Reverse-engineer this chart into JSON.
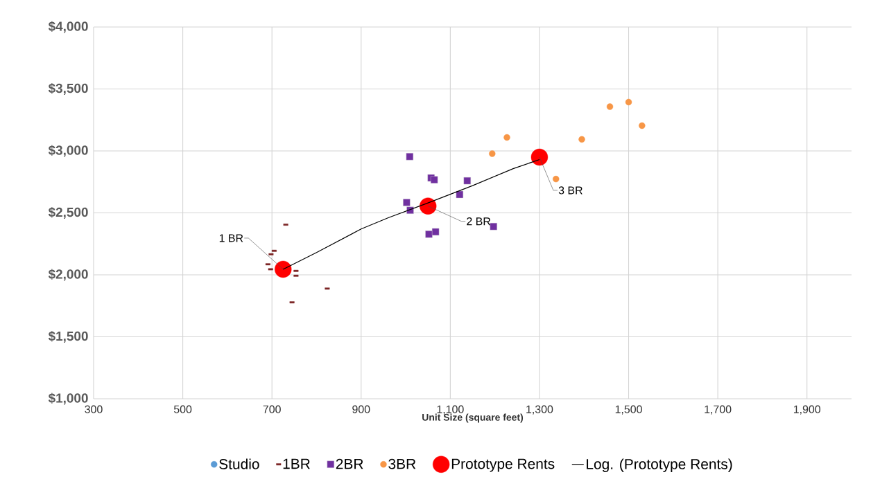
{
  "chart_data": {
    "type": "scatter",
    "xlabel": "Unit Size (square feet)",
    "xlim": [
      300,
      2000
    ],
    "xticks": [
      {
        "value": 300,
        "label": "300"
      },
      {
        "value": 500,
        "label": "500"
      },
      {
        "value": 700,
        "label": "700"
      },
      {
        "value": 900,
        "label": "900"
      },
      {
        "value": 1100,
        "label": "1,100"
      },
      {
        "value": 1300,
        "label": "1,300"
      },
      {
        "value": 1500,
        "label": "1,500"
      },
      {
        "value": 1700,
        "label": "1,700"
      },
      {
        "value": 1900,
        "label": "1,900"
      }
    ],
    "ylim": [
      1000,
      4000
    ],
    "yticks": [
      {
        "value": 1000,
        "label": "$1,000"
      },
      {
        "value": 1500,
        "label": "$1,500"
      },
      {
        "value": 2000,
        "label": "$2,000"
      },
      {
        "value": 2500,
        "label": "$2,500"
      },
      {
        "value": 3000,
        "label": "$3,000"
      },
      {
        "value": 3500,
        "label": "$3,500"
      },
      {
        "value": 4000,
        "label": "$4,000"
      }
    ],
    "grid": true,
    "legend": "bottom",
    "series": [
      {
        "name": "Studio",
        "color": "#5b9bd5",
        "marker": "circle"
      },
      {
        "name": "1BR",
        "color": "#7b2424",
        "x": [
          731,
          705,
          698,
          691,
          697,
          754,
          754,
          824,
          745
        ],
        "values": [
          2405,
          2194,
          2166,
          2085,
          2045,
          2032,
          1993,
          1889,
          1778
        ]
      },
      {
        "name": "2BR",
        "color": "#7030a0",
        "marker": "square",
        "x": [
          1009,
          1057,
          1064,
          1138,
          1121,
          1002,
          1010,
          1197,
          1052,
          1067
        ],
        "values": [
          2954,
          2782,
          2767,
          2759,
          2648,
          2584,
          2521,
          2390,
          2328,
          2347
        ]
      },
      {
        "name": "3BR",
        "color": "#f79646",
        "marker": "circle",
        "x": [
          1227,
          1194,
          1395,
          1458,
          1500,
          1530,
          1337
        ],
        "values": [
          3109,
          2978,
          3093,
          3357,
          3394,
          3204,
          2773
        ]
      },
      {
        "name": "Prototype Rents",
        "color": "#ff0000",
        "marker": "circle",
        "x": [
          725,
          1050,
          1300
        ],
        "values": [
          2045,
          2555,
          2950
        ]
      },
      {
        "name": "Log. (Prototype Rents)",
        "type": "line",
        "color": "#000000",
        "marker": "none",
        "x": [
          725,
          800,
          900,
          961,
          1050,
          1150,
          1241,
          1300
        ],
        "values": [
          2045,
          2180,
          2370,
          2461,
          2580,
          2720,
          2857,
          2930
        ]
      }
    ],
    "annotations": [
      {
        "text": "1 BR",
        "x": 725,
        "y": 2045
      },
      {
        "text": "2 BR",
        "x": 1050,
        "y": 2555
      },
      {
        "text": "3 BR",
        "x": 1300,
        "y": 2950
      }
    ]
  }
}
